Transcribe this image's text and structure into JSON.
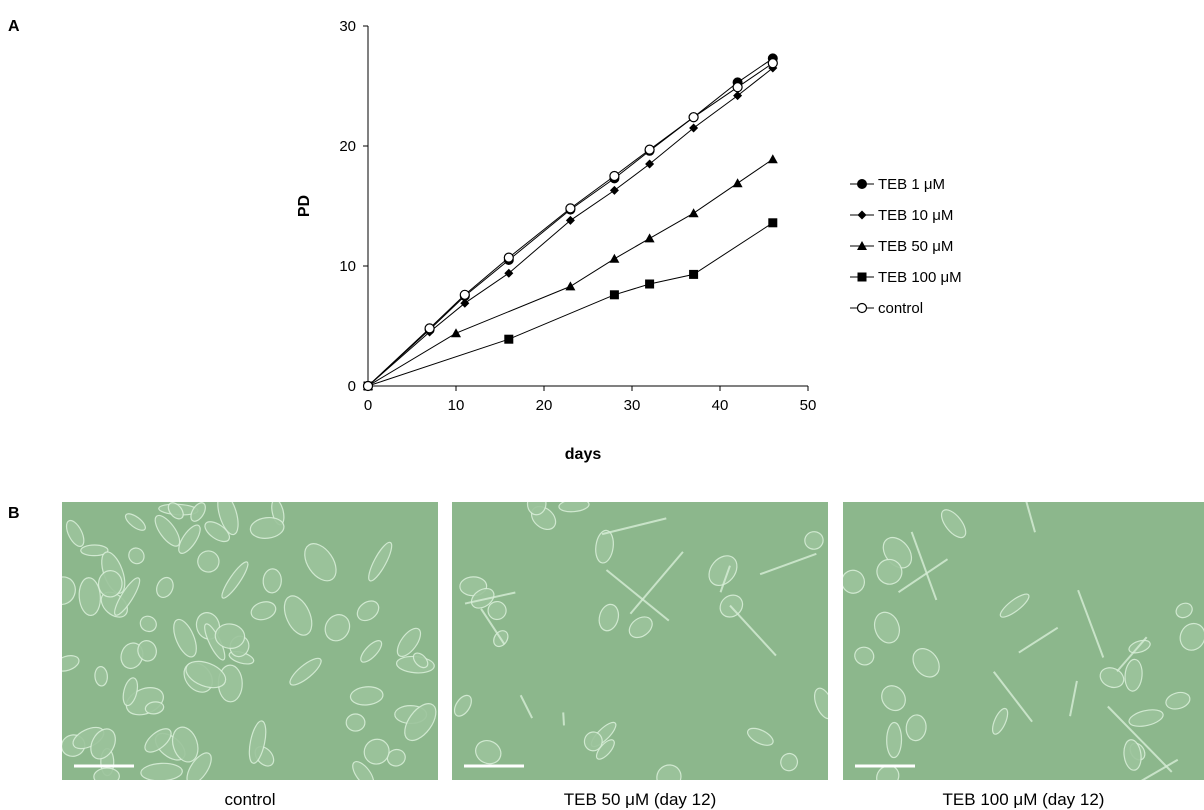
{
  "panel_labels": {
    "a": "A",
    "b": "B"
  },
  "chart_data": {
    "type": "line",
    "xlabel": "days",
    "ylabel": "PD",
    "xlim": [
      0,
      50
    ],
    "ylim": [
      0,
      30
    ],
    "xticks": [
      0,
      10,
      20,
      30,
      40,
      50
    ],
    "yticks": [
      0,
      10,
      20,
      30
    ],
    "grid": false,
    "legend_position": "right",
    "series": [
      {
        "name": "TEB 1 μM",
        "marker": "filled-circle",
        "x": [
          0,
          7,
          11,
          16,
          23,
          28,
          32,
          37,
          42,
          46
        ],
        "y": [
          0,
          4.7,
          7.5,
          10.5,
          14.7,
          17.3,
          19.6,
          22.4,
          25.3,
          27.3
        ]
      },
      {
        "name": "TEB 10 μM",
        "marker": "filled-diamond",
        "x": [
          0,
          7,
          11,
          16,
          23,
          28,
          32,
          37,
          42,
          46
        ],
        "y": [
          0,
          4.5,
          6.9,
          9.4,
          13.8,
          16.3,
          18.5,
          21.5,
          24.2,
          26.5
        ]
      },
      {
        "name": "TEB 50 μM",
        "marker": "filled-triangle",
        "x": [
          0,
          10,
          23,
          28,
          32,
          37,
          42,
          46
        ],
        "y": [
          0,
          4.4,
          8.3,
          10.6,
          12.3,
          14.4,
          16.9,
          18.9
        ]
      },
      {
        "name": "TEB 100 μM",
        "marker": "filled-square",
        "x": [
          0,
          16,
          28,
          32,
          37,
          46
        ],
        "y": [
          0,
          3.9,
          7.6,
          8.5,
          9.3,
          13.6
        ]
      },
      {
        "name": "control",
        "marker": "open-circle",
        "x": [
          0,
          7,
          11,
          16,
          23,
          28,
          32,
          37,
          42,
          46
        ],
        "y": [
          0,
          4.8,
          7.6,
          10.7,
          14.8,
          17.5,
          19.7,
          22.4,
          24.9,
          26.9
        ]
      }
    ]
  },
  "micrographs": [
    {
      "caption": "control"
    },
    {
      "caption": "TEB 50 μM (day 12)"
    },
    {
      "caption": "TEB 100 μM (day 12)"
    }
  ],
  "colors": {
    "micrograph_background": "#8fb88f",
    "line": "#000000"
  }
}
